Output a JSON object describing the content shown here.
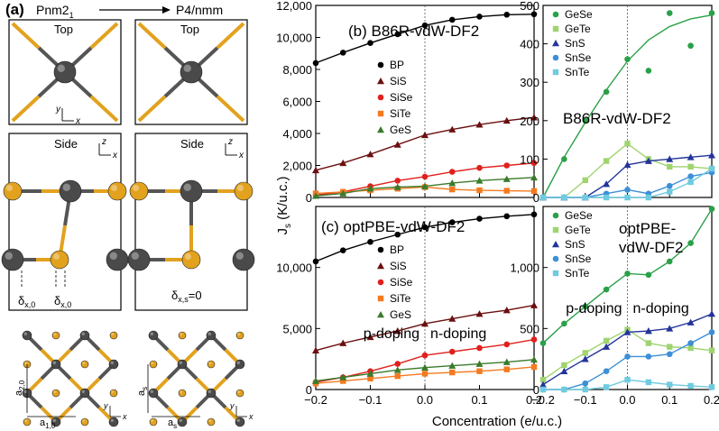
{
  "structure_panel": {
    "panel_label": "(a)",
    "from_group": "Pnm2",
    "from_group_sub": "1",
    "to_group": "P4/nmm",
    "views": [
      "Top",
      "Side"
    ],
    "axis_y": "y",
    "axis_x": "x",
    "axis_z": "z",
    "delta": "δ",
    "delta_sub_left": "x,0",
    "delta_sub_right": "x,0",
    "delta_zero": "δ",
    "delta_zero_sub": "x,s",
    "delta_zero_value": "=0",
    "lattice_a": "a",
    "a2_sub": "2,0",
    "a1_sub": "1,0",
    "as_sub": "s"
  },
  "shared": {
    "ylabel": "J",
    "ylabel_sub": "s",
    "ylabel_unit": "(K/u.c.)",
    "xlabel": "Concentration (e/u.c.)"
  },
  "colors": {
    "BP": "#000000",
    "SiS": "#6b0f0f",
    "SiSe": "#e0201c",
    "SiTe": "#f47a20",
    "GeS": "#3a7a2c",
    "GeSe": "#2aa048",
    "GeTe": "#9fd46e",
    "SnS": "#23349a",
    "SnSe": "#3d8fd6",
    "SnTe": "#6fcbe0",
    "atom_dark": "#4a4a4a",
    "atom_gold": "#e2a21e"
  },
  "chart_data": [
    {
      "id": "b",
      "type": "line",
      "title": "(b) B86R-vdW-DF2",
      "ylim": [
        0,
        12000
      ],
      "yticks": [
        "0",
        "2,000",
        "4,000",
        "6,000",
        "8,000",
        "10,000",
        "12,000"
      ],
      "x": [
        -0.2,
        -0.15,
        -0.1,
        -0.05,
        0,
        0.05,
        0.1,
        0.15,
        0.2
      ],
      "xlim": [
        -0.2,
        0.2
      ],
      "series": [
        {
          "name": "BP",
          "marker": "circle",
          "values": [
            8400,
            9050,
            9650,
            10200,
            10750,
            11100,
            11300,
            11420,
            11450
          ]
        },
        {
          "name": "SiS",
          "marker": "triangle",
          "values": [
            1700,
            2150,
            2700,
            3300,
            3900,
            4250,
            4550,
            4800,
            5000
          ]
        },
        {
          "name": "SiSe",
          "marker": "circle",
          "values": [
            150,
            350,
            700,
            1050,
            1300,
            1600,
            1850,
            2000,
            2150
          ]
        },
        {
          "name": "SiTe",
          "marker": "square",
          "values": [
            250,
            350,
            450,
            550,
            650,
            500,
            450,
            420,
            400
          ]
        },
        {
          "name": "GeS",
          "marker": "triangle",
          "values": [
            100,
            250,
            550,
            650,
            700,
            900,
            1050,
            1150,
            1250
          ]
        }
      ],
      "annotations": []
    },
    {
      "id": "b-right",
      "type": "line",
      "title": "B86R-vdW-DF2",
      "ylim": [
        0,
        500
      ],
      "yticks": [
        "0",
        "100",
        "200",
        "300",
        "400",
        "500"
      ],
      "x": [
        -0.2,
        -0.15,
        -0.1,
        -0.05,
        0,
        0.05,
        0.1,
        0.15,
        0.2
      ],
      "xlim": [
        -0.2,
        0.2
      ],
      "series": [
        {
          "name": "GeSe",
          "marker": "circle",
          "points": [
            [
              -0.2,
              0
            ],
            [
              -0.15,
              100
            ],
            [
              -0.1,
              200
            ],
            [
              -0.05,
              275
            ],
            [
              0,
              360
            ],
            [
              0.05,
              330
            ],
            [
              0.1,
              480
            ],
            [
              0.15,
              395
            ],
            [
              0.2,
              480
            ]
          ],
          "fit": [
            [
              -0.2,
              0
            ],
            [
              -0.15,
              105
            ],
            [
              -0.1,
              195
            ],
            [
              -0.05,
              280
            ],
            [
              0,
              355
            ],
            [
              0.05,
              410
            ],
            [
              0.1,
              445
            ],
            [
              0.15,
              465
            ],
            [
              0.2,
              475
            ]
          ]
        },
        {
          "name": "GeTe",
          "marker": "square",
          "points": [
            [
              -0.2,
              0
            ],
            [
              -0.15,
              0
            ],
            [
              -0.1,
              45
            ],
            [
              -0.05,
              95
            ],
            [
              0,
              140
            ],
            [
              0.05,
              100
            ],
            [
              0.1,
              80
            ],
            [
              0.15,
              80
            ],
            [
              0.2,
              75
            ]
          ]
        },
        {
          "name": "SnS",
          "marker": "triangle",
          "points": [
            [
              -0.2,
              0
            ],
            [
              -0.15,
              0
            ],
            [
              -0.1,
              0
            ],
            [
              -0.05,
              35
            ],
            [
              0,
              85
            ],
            [
              0.05,
              95
            ],
            [
              0.1,
              100
            ],
            [
              0.15,
              105
            ],
            [
              0.2,
              110
            ]
          ]
        },
        {
          "name": "SnSe",
          "marker": "circle",
          "points": [
            [
              -0.2,
              0
            ],
            [
              -0.15,
              0
            ],
            [
              -0.1,
              0
            ],
            [
              -0.05,
              10
            ],
            [
              0,
              20
            ],
            [
              0.05,
              10
            ],
            [
              0.1,
              30
            ],
            [
              0.15,
              55
            ],
            [
              0.2,
              65
            ]
          ]
        },
        {
          "name": "SnTe",
          "marker": "square",
          "points": [
            [
              -0.2,
              0
            ],
            [
              -0.15,
              0
            ],
            [
              -0.1,
              0
            ],
            [
              -0.05,
              0
            ],
            [
              0,
              0
            ],
            [
              0.05,
              0
            ],
            [
              0.1,
              15
            ],
            [
              0.15,
              40
            ],
            [
              0.2,
              75
            ]
          ]
        }
      ],
      "annotations": []
    },
    {
      "id": "c",
      "type": "line",
      "title": "(c) optPBE-vdW-DF2",
      "ylim": [
        0,
        15000
      ],
      "yticks": [
        "0",
        "5,000",
        "10,000"
      ],
      "x": [
        -0.2,
        -0.15,
        -0.1,
        -0.05,
        0,
        0.05,
        0.1,
        0.15,
        0.2
      ],
      "xlim": [
        -0.2,
        0.2
      ],
      "series": [
        {
          "name": "BP",
          "marker": "circle",
          "values": [
            10500,
            11400,
            12100,
            12700,
            13300,
            13700,
            14000,
            14200,
            14350
          ]
        },
        {
          "name": "SiS",
          "marker": "triangle",
          "values": [
            3200,
            3800,
            4300,
            4800,
            5400,
            5800,
            6200,
            6500,
            6900
          ]
        },
        {
          "name": "SiSe",
          "marker": "circle",
          "values": [
            600,
            1000,
            1500,
            2100,
            2800,
            3100,
            3400,
            3700,
            4100
          ]
        },
        {
          "name": "SiTe",
          "marker": "square",
          "values": [
            500,
            700,
            900,
            1100,
            1300,
            1400,
            1500,
            1650,
            1850
          ]
        },
        {
          "name": "GeS",
          "marker": "triangle",
          "values": [
            700,
            1000,
            1300,
            1600,
            1800,
            1950,
            2100,
            2250,
            2450
          ]
        }
      ],
      "annotations": [
        "p-doping",
        "n-doping"
      ]
    },
    {
      "id": "c-right",
      "type": "line",
      "title": "optPBE-vdW-DF2",
      "title_lines": [
        "optPBE-",
        "vdW-DF2"
      ],
      "ylim": [
        0,
        1500
      ],
      "yticks": [
        "0",
        "500",
        "1,000"
      ],
      "x": [
        -0.2,
        -0.15,
        -0.1,
        -0.05,
        0,
        0.05,
        0.1,
        0.15,
        0.2
      ],
      "xlim": [
        -0.2,
        0.2
      ],
      "series": [
        {
          "name": "GeSe",
          "marker": "circle",
          "values": [
            380,
            540,
            680,
            820,
            950,
            940,
            1050,
            1200,
            1480
          ]
        },
        {
          "name": "GeTe",
          "marker": "square",
          "values": [
            80,
            200,
            300,
            400,
            490,
            380,
            350,
            340,
            320
          ]
        },
        {
          "name": "SnS",
          "marker": "triangle",
          "values": [
            40,
            150,
            250,
            350,
            470,
            480,
            500,
            550,
            620
          ]
        },
        {
          "name": "SnSe",
          "marker": "circle",
          "values": [
            0,
            0,
            50,
            150,
            270,
            270,
            290,
            380,
            470
          ]
        },
        {
          "name": "SnTe",
          "marker": "square",
          "values": [
            0,
            0,
            0,
            20,
            80,
            60,
            40,
            30,
            20
          ]
        }
      ],
      "annotations": [
        "p-doping",
        "n-doping"
      ]
    }
  ],
  "xticks": [
    "-0.2",
    "-0.1",
    "0.0",
    "0.1",
    "0.2"
  ]
}
